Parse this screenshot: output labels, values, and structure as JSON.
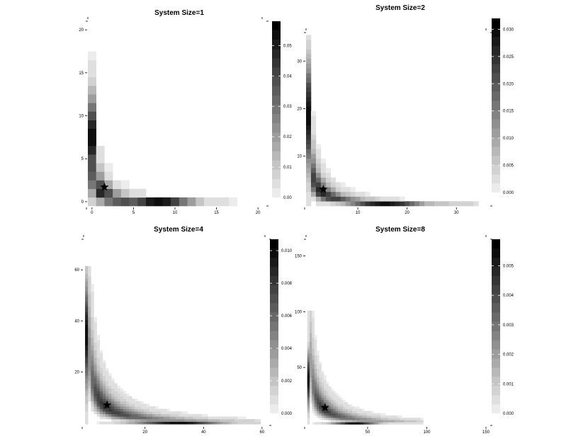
{
  "chart_data": [
    {
      "type": "heatmap",
      "title": "System Size=1",
      "xticks": [
        0,
        5,
        10,
        15,
        20
      ],
      "yticks": [
        0,
        5,
        10,
        15,
        20
      ],
      "xlim": [
        -0.5,
        20.5
      ],
      "ylim": [
        -0.5,
        21
      ],
      "cell": 1,
      "peak": [
        1.5,
        1.7
      ],
      "ridge_x": 8.5,
      "ridge_y": 8.0,
      "extent": 20,
      "colorbar": {
        "ticks": [
          "0.00",
          "0.01",
          "0.02",
          "0.03",
          "0.04",
          "0.05"
        ],
        "max": 0.058,
        "levels": 19
      }
    },
    {
      "type": "heatmap",
      "title": "System Size=2",
      "xticks": [
        10,
        20,
        30
      ],
      "yticks": [
        10,
        20,
        30
      ],
      "xlim": [
        -0.5,
        36
      ],
      "ylim": [
        -0.5,
        36
      ],
      "cell": 1,
      "peak": [
        3,
        3
      ],
      "ridge_x": 16,
      "ridge_y": 19,
      "extent": 35,
      "colorbar": {
        "ticks": [
          "0.000",
          "0.005",
          "0.010",
          "0.015",
          "0.020",
          "0.025",
          "0.030"
        ],
        "max": 0.032,
        "levels": 19
      }
    },
    {
      "type": "heatmap",
      "title": "System Size=4",
      "xticks": [
        20,
        40,
        60
      ],
      "yticks": [
        20,
        40,
        60
      ],
      "xlim": [
        -1,
        61
      ],
      "ylim": [
        -1,
        72
      ],
      "cell": 1,
      "peak": [
        7,
        7
      ],
      "ridge_x": 32,
      "ridge_y": 35,
      "extent": 60,
      "colorbar": {
        "ticks": [
          "0.000",
          "0.002",
          "0.004",
          "0.006",
          "0.008",
          "0.010"
        ],
        "max": 0.0107,
        "levels": 19
      }
    },
    {
      "type": "heatmap",
      "title": "System Size=8",
      "xticks": [
        50,
        100,
        150
      ],
      "yticks": [
        50,
        100,
        150
      ],
      "xlim": [
        -2,
        150
      ],
      "ylim": [
        -2,
        165
      ],
      "cell": 2,
      "peak": [
        14,
        14
      ],
      "ridge_x": 40,
      "ridge_y": 40,
      "extent": 98,
      "colorbar": {
        "ticks": [
          "0.000",
          "0.001",
          "0.002",
          "0.003",
          "0.004",
          "0.005"
        ],
        "max": 0.0059,
        "levels": 19
      }
    }
  ]
}
